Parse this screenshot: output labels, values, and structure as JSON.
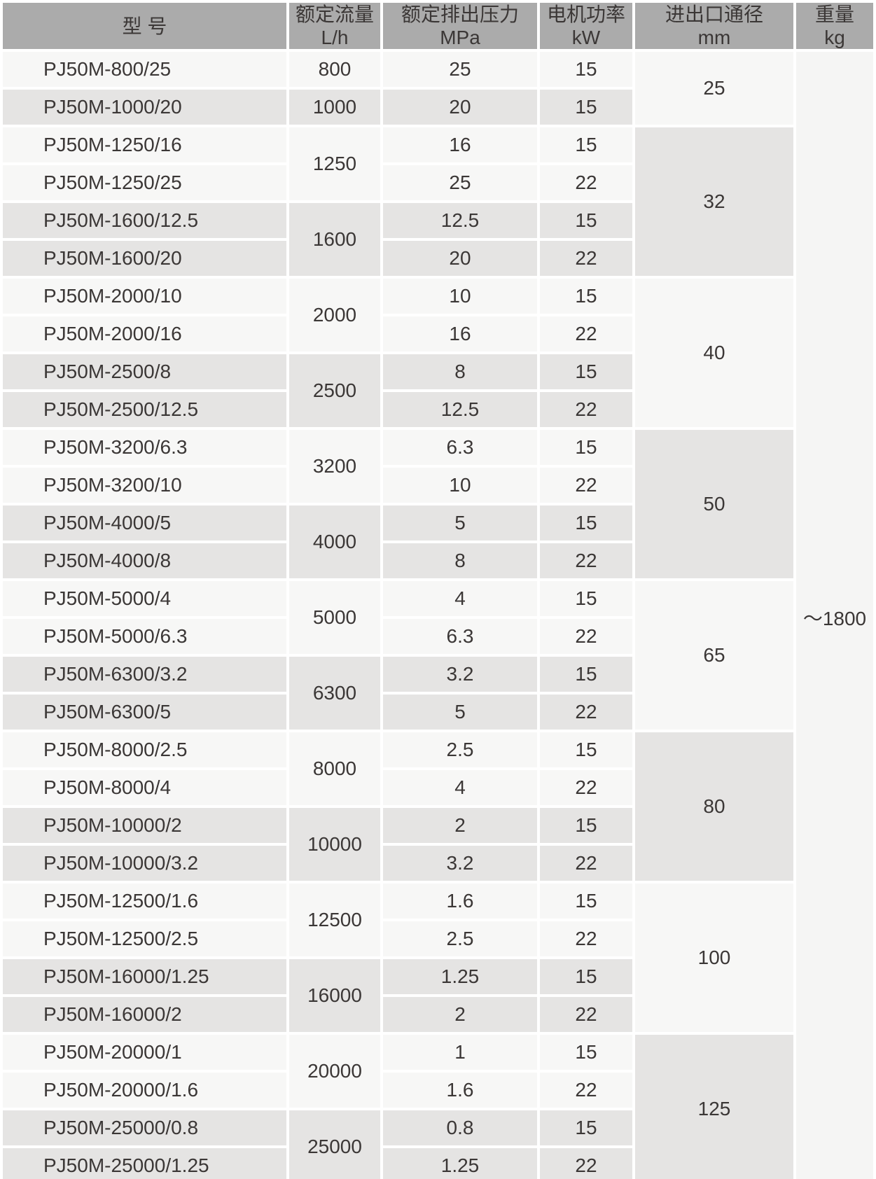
{
  "colors": {
    "header_background": "#ababab",
    "row_light": "#f7f7f6",
    "row_dark": "#e5e4e3",
    "separator": "#ffffff",
    "text": "#3b3736"
  },
  "table": {
    "columns": [
      {
        "title": "型 号",
        "unit": ""
      },
      {
        "title": "额定流量",
        "unit": "L/h"
      },
      {
        "title": "额定排出压力",
        "unit": "MPa"
      },
      {
        "title": "电机功率",
        "unit": "kW"
      },
      {
        "title": "进出口通径",
        "unit": "mm"
      },
      {
        "title": "重量",
        "unit": "kg"
      }
    ],
    "weight_value": "～1800",
    "diameter_groups": [
      {
        "diameter": "25",
        "flow_groups": [
          {
            "flow": "800",
            "rows": [
              {
                "model": "PJ50M-800/25",
                "pressure": "25",
                "power": "15"
              }
            ]
          },
          {
            "flow": "1000",
            "rows": [
              {
                "model": "PJ50M-1000/20",
                "pressure": "20",
                "power": "15"
              }
            ]
          }
        ]
      },
      {
        "diameter": "32",
        "flow_groups": [
          {
            "flow": "1250",
            "rows": [
              {
                "model": "PJ50M-1250/16",
                "pressure": "16",
                "power": "15"
              },
              {
                "model": "PJ50M-1250/25",
                "pressure": "25",
                "power": "22"
              }
            ]
          },
          {
            "flow": "1600",
            "rows": [
              {
                "model": "PJ50M-1600/12.5",
                "pressure": "12.5",
                "power": "15"
              },
              {
                "model": "PJ50M-1600/20",
                "pressure": "20",
                "power": "22"
              }
            ]
          }
        ]
      },
      {
        "diameter": "40",
        "flow_groups": [
          {
            "flow": "2000",
            "rows": [
              {
                "model": "PJ50M-2000/10",
                "pressure": "10",
                "power": "15"
              },
              {
                "model": "PJ50M-2000/16",
                "pressure": "16",
                "power": "22"
              }
            ]
          },
          {
            "flow": "2500",
            "rows": [
              {
                "model": "PJ50M-2500/8",
                "pressure": "8",
                "power": "15"
              },
              {
                "model": "PJ50M-2500/12.5",
                "pressure": "12.5",
                "power": "22"
              }
            ]
          }
        ]
      },
      {
        "diameter": "50",
        "flow_groups": [
          {
            "flow": "3200",
            "rows": [
              {
                "model": "PJ50M-3200/6.3",
                "pressure": "6.3",
                "power": "15"
              },
              {
                "model": "PJ50M-3200/10",
                "pressure": "10",
                "power": "22"
              }
            ]
          },
          {
            "flow": "4000",
            "rows": [
              {
                "model": "PJ50M-4000/5",
                "pressure": "5",
                "power": "15"
              },
              {
                "model": "PJ50M-4000/8",
                "pressure": "8",
                "power": "22"
              }
            ]
          }
        ]
      },
      {
        "diameter": "65",
        "flow_groups": [
          {
            "flow": "5000",
            "rows": [
              {
                "model": "PJ50M-5000/4",
                "pressure": "4",
                "power": "15"
              },
              {
                "model": "PJ50M-5000/6.3",
                "pressure": "6.3",
                "power": "22"
              }
            ]
          },
          {
            "flow": "6300",
            "rows": [
              {
                "model": "PJ50M-6300/3.2",
                "pressure": "3.2",
                "power": "15"
              },
              {
                "model": "PJ50M-6300/5",
                "pressure": "5",
                "power": "22"
              }
            ]
          }
        ]
      },
      {
        "diameter": "80",
        "flow_groups": [
          {
            "flow": "8000",
            "rows": [
              {
                "model": "PJ50M-8000/2.5",
                "pressure": "2.5",
                "power": "15"
              },
              {
                "model": "PJ50M-8000/4",
                "pressure": "4",
                "power": "22"
              }
            ]
          },
          {
            "flow": "10000",
            "rows": [
              {
                "model": "PJ50M-10000/2",
                "pressure": "2",
                "power": "15"
              },
              {
                "model": "PJ50M-10000/3.2",
                "pressure": "3.2",
                "power": "22"
              }
            ]
          }
        ]
      },
      {
        "diameter": "100",
        "flow_groups": [
          {
            "flow": "12500",
            "rows": [
              {
                "model": "PJ50M-12500/1.6",
                "pressure": "1.6",
                "power": "15"
              },
              {
                "model": "PJ50M-12500/2.5",
                "pressure": "2.5",
                "power": "22"
              }
            ]
          },
          {
            "flow": "16000",
            "rows": [
              {
                "model": "PJ50M-16000/1.25",
                "pressure": "1.25",
                "power": "15"
              },
              {
                "model": "PJ50M-16000/2",
                "pressure": "2",
                "power": "22"
              }
            ]
          }
        ]
      },
      {
        "diameter": "125",
        "flow_groups": [
          {
            "flow": "20000",
            "rows": [
              {
                "model": "PJ50M-20000/1",
                "pressure": "1",
                "power": "15"
              },
              {
                "model": "PJ50M-20000/1.6",
                "pressure": "1.6",
                "power": "22"
              }
            ]
          },
          {
            "flow": "25000",
            "rows": [
              {
                "model": "PJ50M-25000/0.8",
                "pressure": "0.8",
                "power": "15"
              },
              {
                "model": "PJ50M-25000/1.25",
                "pressure": "1.25",
                "power": "22"
              }
            ]
          }
        ]
      }
    ]
  }
}
